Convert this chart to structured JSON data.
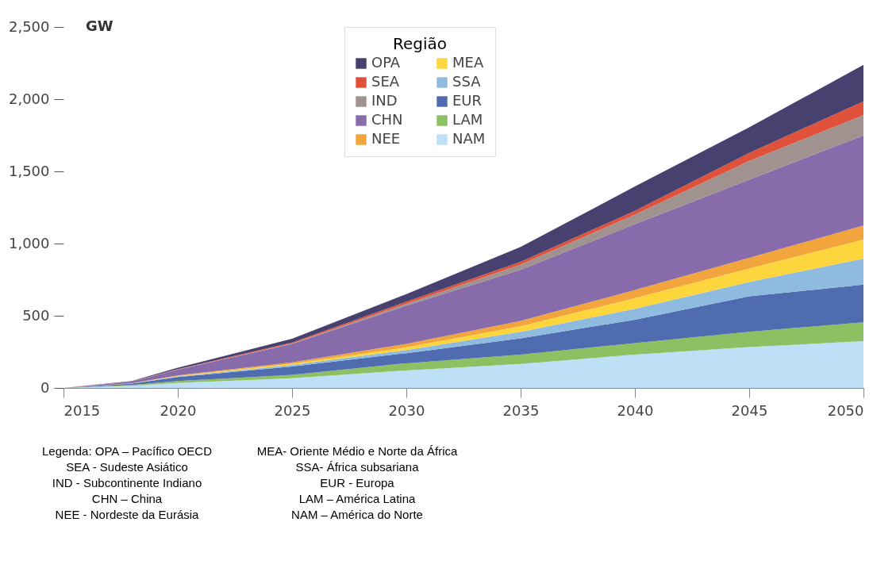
{
  "chart_data": {
    "type": "area",
    "stacked": true,
    "ylabel": "GW",
    "legend_title": "Região",
    "legend": "top",
    "x": [
      2015,
      2018,
      2020,
      2025,
      2030,
      2035,
      2040,
      2045,
      2050
    ],
    "xlim": [
      2015,
      2050
    ],
    "xticks": [
      2015,
      2020,
      2025,
      2030,
      2035,
      2040,
      2045,
      2050
    ],
    "ylim": [
      0,
      2500
    ],
    "yticks": [
      0,
      {
        "value": 500,
        "label": "500"
      },
      {
        "value": 1000,
        "label": "1,000"
      },
      {
        "value": 1500,
        "label": "1,500"
      },
      {
        "value": 2000,
        "label": "2,000"
      },
      {
        "value": 2500,
        "label": "2,500"
      }
    ],
    "grid": false,
    "series": [
      {
        "name": "NAM",
        "color": "#bde0f7",
        "values": [
          0,
          15,
          35,
          67,
          121,
          166,
          231,
          283,
          324
        ]
      },
      {
        "name": "LAM",
        "color": "#8cc063",
        "values": [
          0,
          5,
          13,
          23,
          50,
          65,
          80,
          106,
          130
        ]
      },
      {
        "name": "EUR",
        "color": "#4f6cb0",
        "values": [
          0,
          10,
          27,
          59,
          70,
          112,
          162,
          246,
          261
        ]
      },
      {
        "name": "SSA",
        "color": "#8fbbe0",
        "values": [
          0,
          1,
          4,
          10,
          21,
          46,
          75,
          99,
          181
        ]
      },
      {
        "name": "MEA",
        "color": "#fdd53c",
        "values": [
          0,
          1,
          4,
          8,
          19,
          38,
          74,
          93,
          131
        ]
      },
      {
        "name": "NEE",
        "color": "#f2a53d",
        "values": [
          0,
          1,
          4,
          10,
          24,
          37,
          56,
          74,
          98
        ]
      },
      {
        "name": "CHN",
        "color": "#876bab",
        "values": [
          0,
          11,
          40,
          128,
          265,
          354,
          456,
          541,
          624
        ]
      },
      {
        "name": "IND",
        "color": "#a0928e",
        "values": [
          0,
          0,
          1,
          3,
          13,
          37,
          66,
          130,
          140
        ]
      },
      {
        "name": "SEA",
        "color": "#e0513c",
        "values": [
          0,
          1,
          2,
          6,
          15,
          19,
          27,
          56,
          96
        ]
      },
      {
        "name": "OPA",
        "color": "#46416e",
        "values": [
          0,
          3,
          10,
          27,
          52,
          102,
          168,
          177,
          252
        ]
      }
    ],
    "annotations": [
      "Legenda: OPA – Pacífico OECD",
      "SEA - Sudeste Asiático",
      "IND - Subcontinente Indiano",
      "CHN – China",
      "NEE - Nordeste da Eurásia",
      "MEA- Oriente Médio e Norte da África",
      "SSA- África subsariana",
      "EUR - Europa",
      "LAM – América Latina",
      "NAM – América do Norte"
    ]
  }
}
